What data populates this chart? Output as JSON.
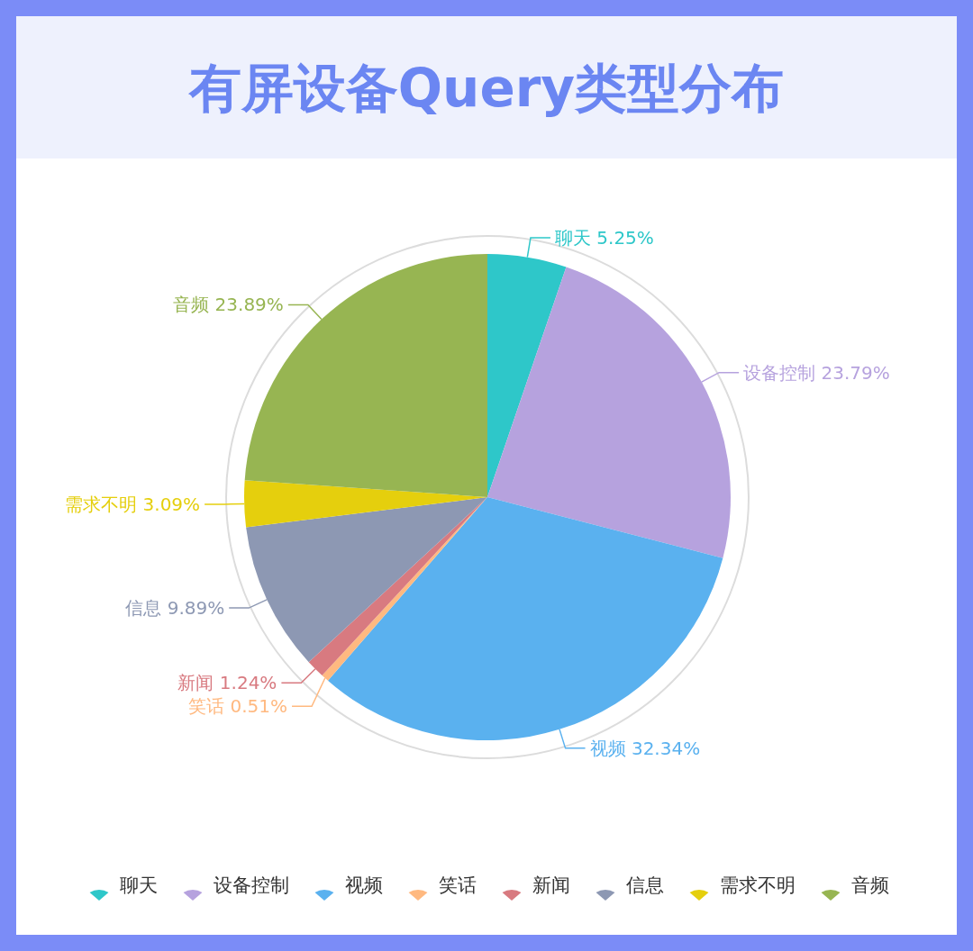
{
  "chart_data": {
    "type": "pie",
    "title": "有屏设备Query类型分布",
    "categories": [
      "聊天",
      "设备控制",
      "视频",
      "笑话",
      "新闻",
      "信息",
      "需求不明",
      "音频"
    ],
    "values": [
      5.25,
      23.79,
      32.34,
      0.51,
      1.24,
      9.89,
      3.09,
      23.89
    ],
    "value_labels": [
      "5.25%",
      "23.79%",
      "32.34%",
      "0.51%",
      "1.24%",
      "9.89%",
      "3.09%",
      "23.89%"
    ],
    "colors": [
      "#2ec7c9",
      "#b6a2de",
      "#5ab1ef",
      "#ffb980",
      "#d87a80",
      "#8d98b3",
      "#e5cf0d",
      "#97b552"
    ],
    "legend": "bottom"
  }
}
